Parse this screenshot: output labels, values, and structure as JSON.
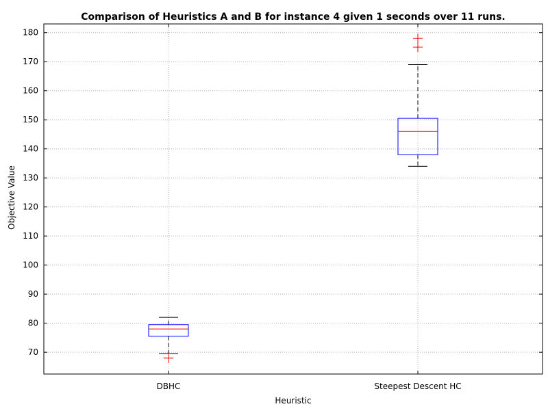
{
  "chart_data": {
    "type": "box",
    "title": "Comparison of Heuristics A and B for instance 4 given 1 seconds over 11 runs.",
    "xlabel": "Heuristic",
    "ylabel": "Objective Value",
    "categories": [
      "DBHC",
      "Steepest Descent HC"
    ],
    "ylim": [
      62.5,
      183
    ],
    "yticks": [
      70,
      80,
      90,
      100,
      110,
      120,
      130,
      140,
      150,
      160,
      170,
      180
    ],
    "grid": true,
    "boxes": [
      {
        "label": "DBHC",
        "whisker_low": 69.5,
        "q1": 75.5,
        "median": 78,
        "q3": 79.5,
        "whisker_high": 82,
        "outliers": [
          68,
          68
        ]
      },
      {
        "label": "Steepest Descent HC",
        "whisker_low": 134,
        "q1": 138,
        "median": 146,
        "q3": 150.5,
        "whisker_high": 169,
        "outliers": [
          175,
          178
        ]
      }
    ],
    "colors": {
      "box": "#0000ff",
      "median": "#ff0000",
      "outlier": "#ff0000",
      "whisker": "#000000",
      "grid": "#b0b0b0"
    }
  }
}
